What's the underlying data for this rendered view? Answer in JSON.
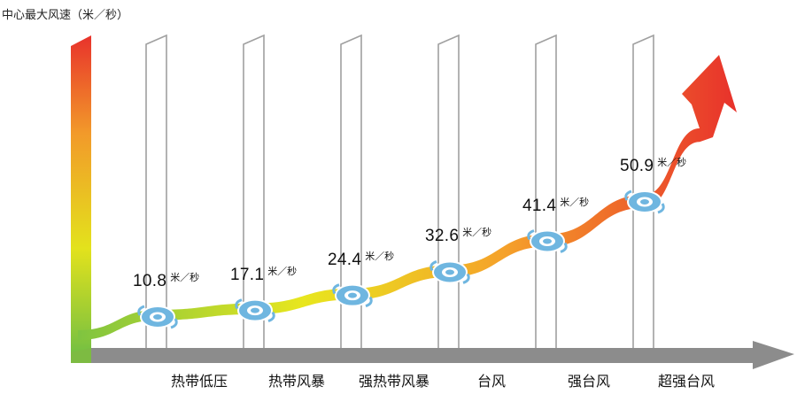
{
  "y_axis_label": "中心最大风速（米／秒）",
  "chart_data": {
    "type": "line",
    "ylabel": "中心最大风速（米／秒）",
    "categories": [
      "热带低压",
      "热带风暴",
      "强热带风暴",
      "台风",
      "强台风",
      "超强台风"
    ],
    "values": [
      10.8,
      17.1,
      24.4,
      32.6,
      41.4,
      50.9
    ],
    "value_labels": [
      "10.8",
      "17.1",
      "24.4",
      "32.6",
      "41.4",
      "50.9"
    ],
    "unit": "米／秒"
  },
  "colors": {
    "axis_top": "#e8322b",
    "axis_mid": "#e6e619",
    "axis_bottom": "#7cc341",
    "x_axis": "#8c8c8c",
    "storm_icon": "#6fb6e0"
  },
  "icons": [
    "typhoon-icon"
  ]
}
